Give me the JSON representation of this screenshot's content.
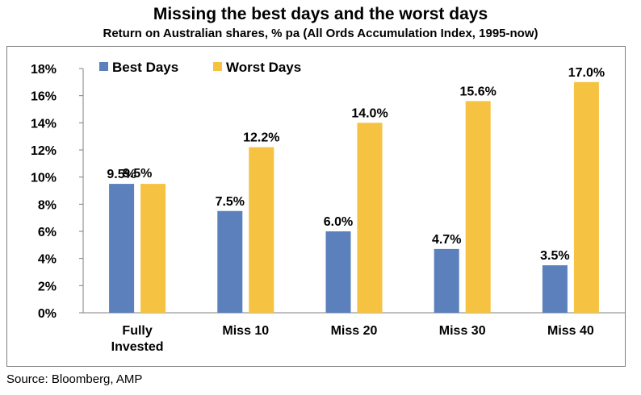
{
  "chart_data": {
    "type": "bar",
    "title": "Missing the best days and the worst days",
    "subtitle": "Return on Australian shares, % pa (All Ords Accumulation Index, 1995-now)",
    "categories": [
      [
        "Fully",
        "Invested"
      ],
      [
        "Miss 10"
      ],
      [
        "Miss 20"
      ],
      [
        "Miss 30"
      ],
      [
        "Miss 40"
      ]
    ],
    "series": [
      {
        "name": "Best Days",
        "color": "#5b80bc",
        "values": [
          9.5,
          7.5,
          6.0,
          4.7,
          3.5
        ],
        "labels": [
          "9.5%",
          "7.5%",
          "6.0%",
          "4.7%",
          "3.5%"
        ]
      },
      {
        "name": "Worst Days",
        "color": "#f5c242",
        "values": [
          9.5,
          12.2,
          14.0,
          15.6,
          17.0
        ],
        "labels": [
          "",
          "12.2%",
          "14.0%",
          "15.6%",
          "17.0%"
        ]
      }
    ],
    "ylim": [
      0,
      18
    ],
    "yticks": [
      "0%",
      "2%",
      "4%",
      "6%",
      "8%",
      "10%",
      "12%",
      "14%",
      "16%",
      "18%"
    ],
    "shared_label": "9.5%",
    "legend_position": "top-left",
    "grid": false
  },
  "source": "Source: Bloomberg, AMP"
}
